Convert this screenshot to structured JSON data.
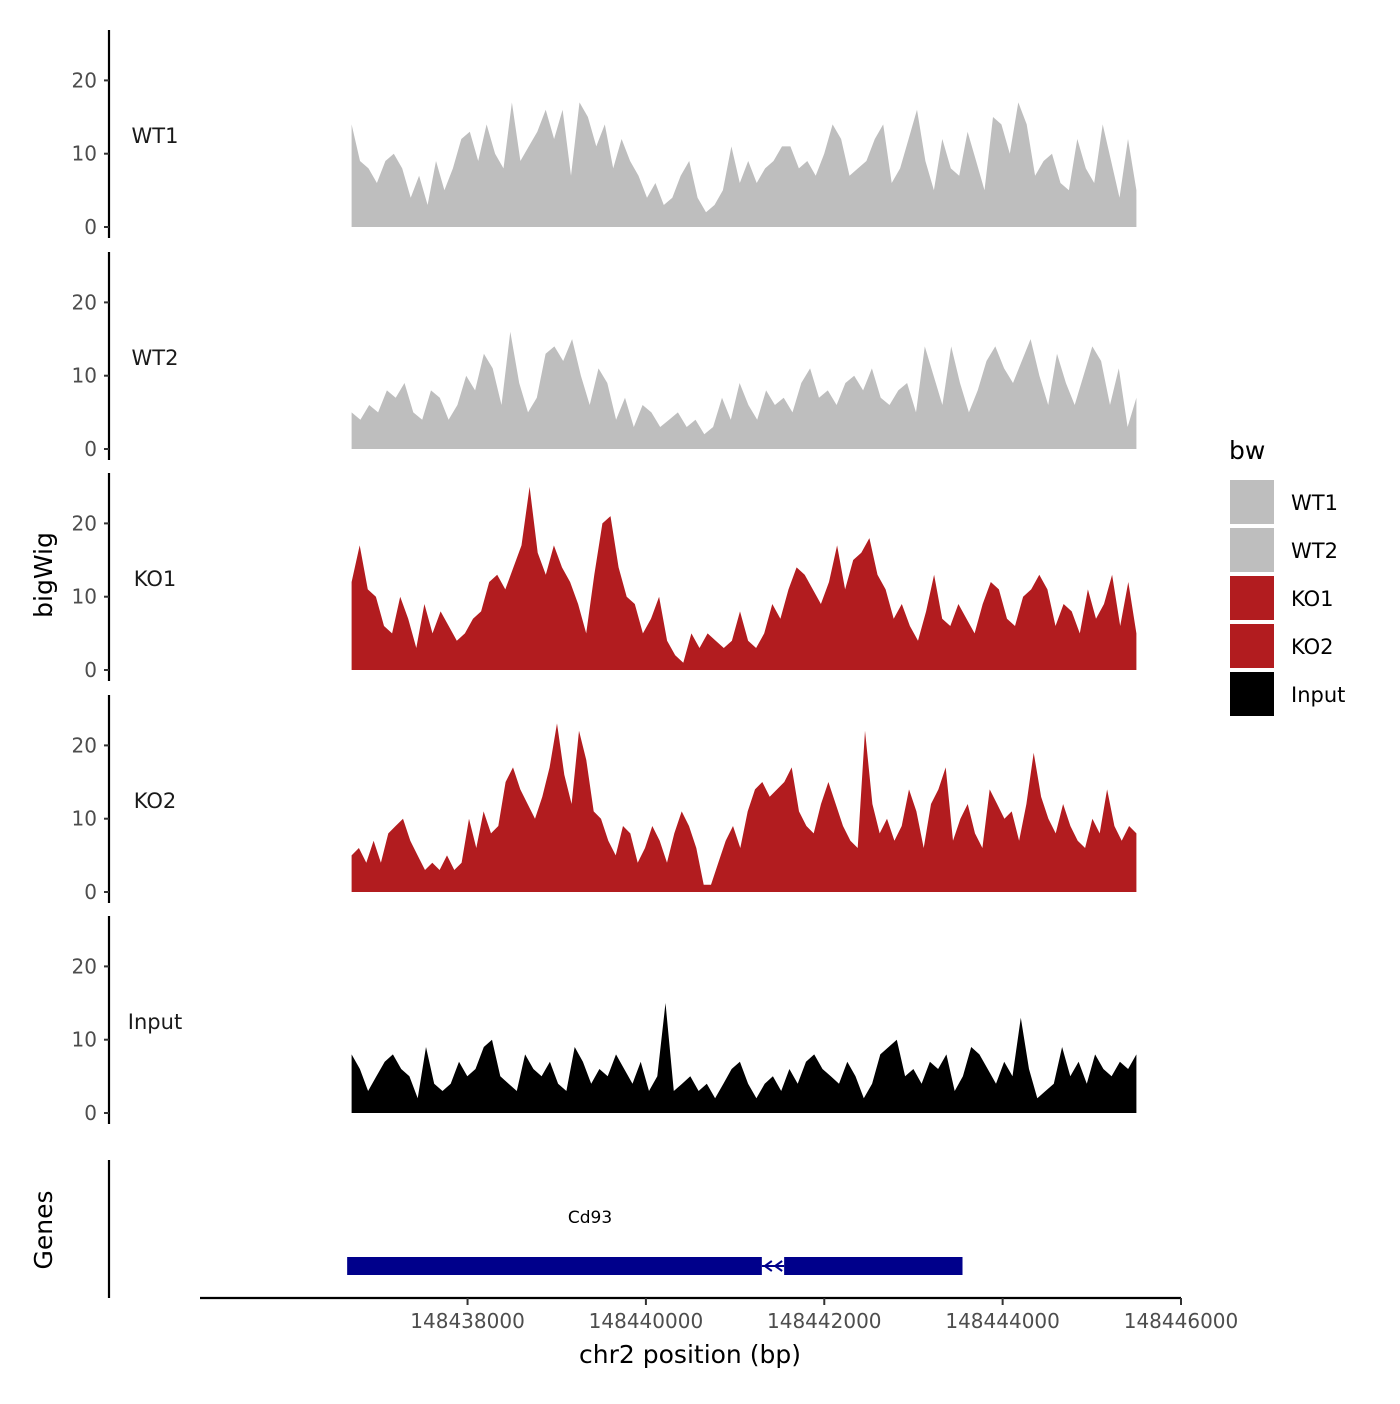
{
  "chart_data": {
    "type": "area",
    "ylabel": "bigWig",
    "genes_label": "Genes",
    "xlabel": "chr2 position (bp)",
    "xlim": [
      148435000,
      148446000
    ],
    "x_ticks": [
      148438000,
      148440000,
      148442000,
      148444000,
      148446000
    ],
    "x_tick_labels": [
      "148438000",
      "148440000",
      "148442000",
      "148444000",
      "148446000"
    ],
    "ylim": [
      0,
      27
    ],
    "y_ticks": [
      0,
      10,
      20
    ],
    "y_tick_labels": [
      "0",
      "10",
      "20"
    ],
    "data_x_range": [
      148436700,
      148445500
    ],
    "legend": {
      "title": "bw",
      "position": "right",
      "entries": [
        {
          "label": "WT1",
          "color": "#bebebe"
        },
        {
          "label": "WT2",
          "color": "#bebebe"
        },
        {
          "label": "KO1",
          "color": "#b21c1f"
        },
        {
          "label": "KO2",
          "color": "#b21c1f"
        },
        {
          "label": "Input",
          "color": "#000000"
        }
      ]
    },
    "series": [
      {
        "name": "WT1",
        "color": "#bebebe",
        "values": [
          14,
          9,
          8,
          6,
          9,
          10,
          8,
          4,
          7,
          3,
          9,
          5,
          8,
          12,
          13,
          9,
          14,
          10,
          8,
          17,
          9,
          11,
          13,
          16,
          12,
          16,
          7,
          17,
          15,
          11,
          14,
          8,
          12,
          9,
          7,
          4,
          6,
          3,
          4,
          7,
          9,
          4,
          2,
          3,
          5,
          11,
          6,
          9,
          6,
          8,
          9,
          11,
          11,
          8,
          9,
          7,
          10,
          14,
          12,
          7,
          8,
          9,
          12,
          14,
          6,
          8,
          12,
          16,
          9,
          5,
          12,
          8,
          7,
          13,
          9,
          5,
          15,
          14,
          10,
          17,
          14,
          7,
          9,
          10,
          6,
          5,
          12,
          8,
          6,
          14,
          9,
          4,
          12,
          5
        ]
      },
      {
        "name": "WT2",
        "color": "#bebebe",
        "values": [
          5,
          4,
          6,
          5,
          8,
          7,
          9,
          5,
          4,
          8,
          7,
          4,
          6,
          10,
          8,
          13,
          11,
          6,
          16,
          9,
          5,
          7,
          13,
          14,
          12,
          15,
          10,
          6,
          11,
          9,
          4,
          7,
          3,
          6,
          5,
          3,
          4,
          5,
          3,
          4,
          2,
          3,
          7,
          4,
          9,
          6,
          4,
          8,
          6,
          7,
          5,
          9,
          11,
          7,
          8,
          6,
          9,
          10,
          8,
          11,
          7,
          6,
          8,
          9,
          5,
          14,
          10,
          6,
          14,
          9,
          5,
          8,
          12,
          14,
          11,
          9,
          12,
          15,
          10,
          6,
          13,
          9,
          6,
          10,
          14,
          12,
          6,
          11,
          3,
          7
        ]
      },
      {
        "name": "KO1",
        "color": "#b21c1f",
        "values": [
          12,
          17,
          11,
          10,
          6,
          5,
          10,
          7,
          3,
          9,
          5,
          8,
          6,
          4,
          5,
          7,
          8,
          12,
          13,
          11,
          14,
          17,
          25,
          16,
          13,
          17,
          14,
          12,
          9,
          5,
          13,
          20,
          21,
          14,
          10,
          9,
          5,
          7,
          10,
          4,
          2,
          1,
          5,
          3,
          5,
          4,
          3,
          4,
          8,
          4,
          3,
          5,
          9,
          7,
          11,
          14,
          13,
          11,
          9,
          12,
          17,
          11,
          15,
          16,
          18,
          13,
          11,
          7,
          9,
          6,
          4,
          8,
          13,
          7,
          6,
          9,
          7,
          5,
          9,
          12,
          11,
          7,
          6,
          10,
          11,
          13,
          11,
          6,
          9,
          8,
          5,
          11,
          7,
          9,
          13,
          6,
          12,
          5
        ]
      },
      {
        "name": "KO2",
        "color": "#b21c1f",
        "values": [
          5,
          6,
          4,
          7,
          4,
          8,
          9,
          10,
          7,
          5,
          3,
          4,
          3,
          5,
          3,
          4,
          10,
          6,
          11,
          8,
          9,
          15,
          17,
          14,
          12,
          10,
          13,
          17,
          23,
          16,
          12,
          22,
          18,
          11,
          10,
          7,
          5,
          9,
          8,
          4,
          6,
          9,
          7,
          4,
          8,
          11,
          9,
          6,
          1,
          1,
          4,
          7,
          9,
          6,
          11,
          14,
          15,
          13,
          14,
          15,
          17,
          11,
          9,
          8,
          12,
          15,
          12,
          9,
          7,
          6,
          22,
          12,
          8,
          10,
          7,
          9,
          14,
          11,
          6,
          12,
          14,
          17,
          7,
          10,
          12,
          8,
          6,
          14,
          12,
          10,
          11,
          7,
          12,
          19,
          13,
          10,
          8,
          12,
          9,
          7,
          6,
          10,
          8,
          14,
          9,
          7,
          9,
          8
        ]
      },
      {
        "name": "Input",
        "color": "#000000",
        "values": [
          8,
          6,
          3,
          5,
          7,
          8,
          6,
          5,
          2,
          9,
          4,
          3,
          4,
          7,
          5,
          6,
          9,
          10,
          5,
          4,
          3,
          8,
          6,
          5,
          7,
          4,
          3,
          9,
          7,
          4,
          6,
          5,
          8,
          6,
          4,
          7,
          3,
          5,
          15,
          3,
          4,
          5,
          3,
          4,
          2,
          4,
          6,
          7,
          4,
          2,
          4,
          5,
          3,
          6,
          4,
          7,
          8,
          6,
          5,
          4,
          7,
          5,
          2,
          4,
          8,
          9,
          10,
          5,
          6,
          4,
          7,
          6,
          8,
          3,
          5,
          9,
          8,
          6,
          4,
          7,
          5,
          13,
          6,
          2,
          3,
          4,
          9,
          5,
          7,
          4,
          8,
          6,
          5,
          7,
          6,
          8
        ]
      }
    ],
    "genes": [
      {
        "name": "Cd93",
        "strand": "-",
        "exons": [
          [
            148436650,
            148441300
          ],
          [
            148441550,
            148443550
          ]
        ],
        "intron": [
          148441300,
          148441550
        ],
        "color": "#00008b"
      }
    ]
  }
}
